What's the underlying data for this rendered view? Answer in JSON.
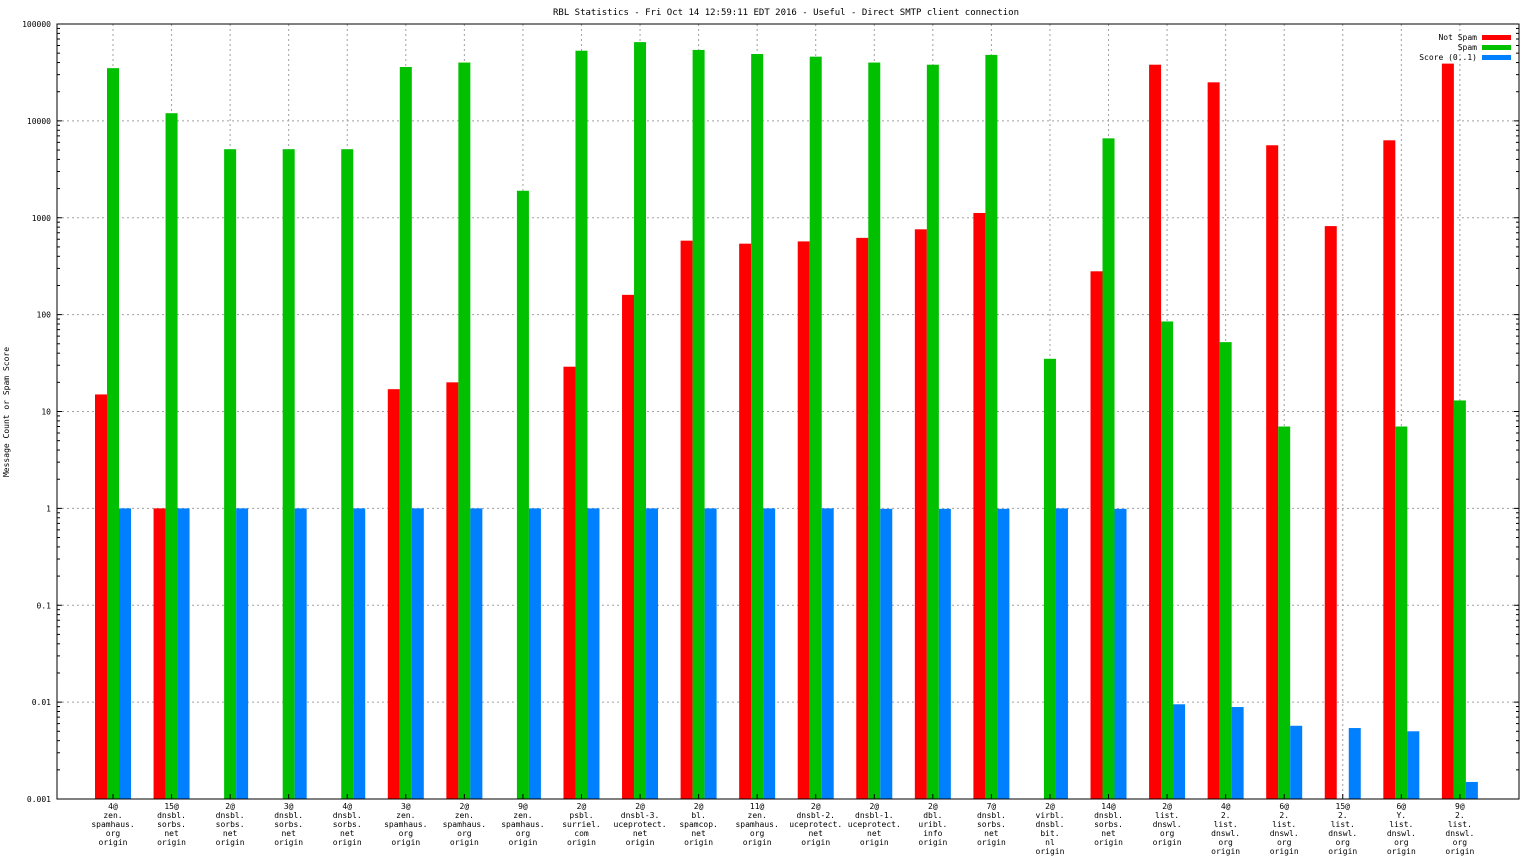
{
  "chart_data": {
    "type": "bar",
    "title": "RBL Statistics - Fri Oct 14 12:59:11 EDT 2016 - Useful - Direct SMTP client connection",
    "ylabel": "Message Count or Spam Score",
    "xlabel": "",
    "yscale": "log",
    "ylim": [
      0.001,
      100000
    ],
    "yticks": [
      "0.001",
      "0.01",
      "0.1",
      "1",
      "10",
      "100",
      "1000",
      "10000",
      "100000"
    ],
    "grid": true,
    "legend_position": "top-right",
    "categories": [
      [
        "4@",
        "zen.",
        "spamhaus.",
        "org",
        "origin"
      ],
      [
        "15@",
        "dnsbl.",
        "sorbs.",
        "net",
        "origin"
      ],
      [
        "2@",
        "dnsbl.",
        "sorbs.",
        "net",
        "origin"
      ],
      [
        "3@",
        "dnsbl.",
        "sorbs.",
        "net",
        "origin"
      ],
      [
        "4@",
        "dnsbl.",
        "sorbs.",
        "net",
        "origin"
      ],
      [
        "3@",
        "zen.",
        "spamhaus.",
        "org",
        "origin"
      ],
      [
        "2@",
        "zen.",
        "spamhaus.",
        "org",
        "origin"
      ],
      [
        "9@",
        "zen.",
        "spamhaus.",
        "org",
        "origin"
      ],
      [
        "2@",
        "psbl.",
        "surriel.",
        "com",
        "origin"
      ],
      [
        "2@",
        "dnsbl-3.",
        "uceprotect.",
        "net",
        "origin"
      ],
      [
        "2@",
        "bl.",
        "spamcop.",
        "net",
        "origin"
      ],
      [
        "11@",
        "zen.",
        "spamhaus.",
        "org",
        "origin"
      ],
      [
        "2@",
        "dnsbl-2.",
        "uceprotect.",
        "net",
        "origin"
      ],
      [
        "2@",
        "dnsbl-1.",
        "uceprotect.",
        "net",
        "origin"
      ],
      [
        "2@",
        "dbl.",
        "uribl.",
        "info",
        "origin"
      ],
      [
        "7@",
        "dnsbl.",
        "sorbs.",
        "net",
        "origin"
      ],
      [
        "2@",
        "virbl.",
        "dnsbl.",
        "bit.",
        "nl",
        "origin"
      ],
      [
        "14@",
        "dnsbl.",
        "sorbs.",
        "net",
        "origin"
      ],
      [
        "2@",
        "list.",
        "dnswl.",
        "org",
        "origin"
      ],
      [
        "4@",
        "2.",
        "list.",
        "dnswl.",
        "org",
        "origin"
      ],
      [
        "6@",
        "2.",
        "list.",
        "dnswl.",
        "org",
        "origin"
      ],
      [
        "15@",
        "2.",
        "list.",
        "dnswl.",
        "org",
        "origin"
      ],
      [
        "6@",
        "Y.",
        "list.",
        "dnswl.",
        "org",
        "origin"
      ],
      [
        "9@",
        "2.",
        "list.",
        "dnswl.",
        "org",
        "origin"
      ]
    ],
    "series": [
      {
        "name": "Not Spam",
        "color": "#ff0000",
        "values": [
          15,
          1,
          null,
          null,
          null,
          17,
          20,
          null,
          29,
          160,
          580,
          540,
          570,
          620,
          760,
          1120,
          null,
          280,
          38000,
          25000,
          5600,
          820,
          6300,
          39000
        ]
      },
      {
        "name": "Spam",
        "color": "#00c000",
        "values": [
          35000,
          12000,
          5100,
          5100,
          5100,
          36000,
          40000,
          1900,
          53000,
          65000,
          54000,
          49000,
          46000,
          40000,
          38000,
          48000,
          35,
          6600,
          85,
          52,
          7,
          null,
          7,
          13
        ]
      },
      {
        "name": "Score (0..1)",
        "color": "#0080ff",
        "values": [
          1,
          1,
          1,
          1,
          1,
          1,
          1,
          1,
          1,
          1,
          1,
          1,
          1,
          0.99,
          0.99,
          0.99,
          1,
          0.99,
          0.0095,
          0.0089,
          0.0057,
          0.0054,
          0.005,
          0.0015
        ]
      }
    ]
  }
}
